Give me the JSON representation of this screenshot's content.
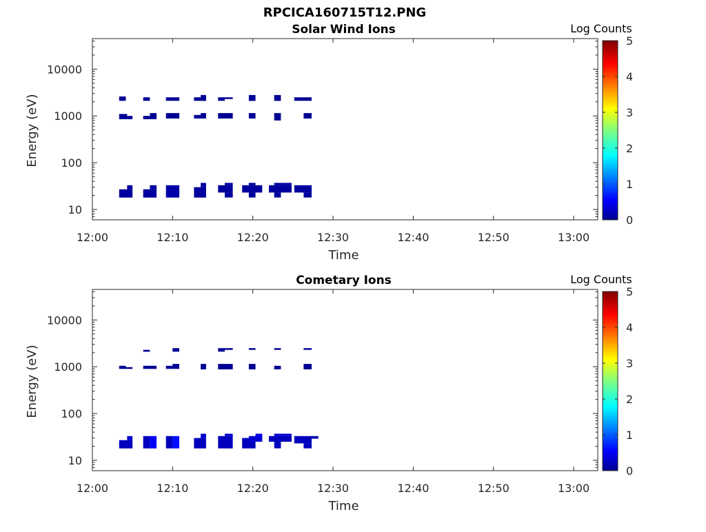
{
  "figure": {
    "title": "RPCICA160715T12.PNG"
  },
  "colorbar": {
    "label": "Log Counts",
    "min": 0,
    "max": 5,
    "ticks": [
      0,
      1,
      2,
      3,
      4,
      5
    ],
    "colormap": "jet"
  },
  "chart_data": [
    {
      "type": "heatmap",
      "title": "Solar Wind Ions",
      "xlabel": "Time",
      "ylabel": "Energy (eV)",
      "yscale": "log",
      "xlim": [
        "12:00",
        "13:03"
      ],
      "ylim": [
        6,
        45000
      ],
      "xticks": [
        "12:00",
        "12:10",
        "12:20",
        "12:30",
        "12:40",
        "12:50",
        "13:00"
      ],
      "yticks": [
        10,
        100,
        1000,
        10000
      ],
      "grid": false,
      "clim": [
        0,
        5
      ],
      "cells": [
        {
          "t0": "12:03:20",
          "t1": "12:04:10",
          "e0": 2100,
          "e1": 2600,
          "v": 0.1
        },
        {
          "t0": "12:03:20",
          "t1": "12:04:20",
          "e0": 850,
          "e1": 1100,
          "v": 0.1
        },
        {
          "t0": "12:04:20",
          "t1": "12:05:00",
          "e0": 850,
          "e1": 1000,
          "v": 0.1
        },
        {
          "t0": "12:03:20",
          "t1": "12:05:00",
          "e0": 18,
          "e1": 27,
          "v": 0.15
        },
        {
          "t0": "12:04:20",
          "t1": "12:05:00",
          "e0": 27,
          "e1": 33,
          "v": 0.15
        },
        {
          "t0": "12:06:20",
          "t1": "12:07:10",
          "e0": 2100,
          "e1": 2500,
          "v": 0.1
        },
        {
          "t0": "12:06:20",
          "t1": "12:07:10",
          "e0": 850,
          "e1": 1000,
          "v": 0.1
        },
        {
          "t0": "12:07:10",
          "t1": "12:08:00",
          "e0": 850,
          "e1": 1150,
          "v": 0.1
        },
        {
          "t0": "12:06:20",
          "t1": "12:08:00",
          "e0": 18,
          "e1": 27,
          "v": 0.15
        },
        {
          "t0": "12:07:10",
          "t1": "12:08:00",
          "e0": 27,
          "e1": 33,
          "v": 0.15
        },
        {
          "t0": "12:09:10",
          "t1": "12:10:50",
          "e0": 2100,
          "e1": 2500,
          "v": 0.1
        },
        {
          "t0": "12:09:10",
          "t1": "12:10:50",
          "e0": 880,
          "e1": 1150,
          "v": 0.1
        },
        {
          "t0": "12:09:10",
          "t1": "12:10:50",
          "e0": 18,
          "e1": 33,
          "v": 0.2
        },
        {
          "t0": "12:12:40",
          "t1": "12:13:30",
          "e0": 2100,
          "e1": 2500,
          "v": 0.1
        },
        {
          "t0": "12:13:30",
          "t1": "12:14:10",
          "e0": 2100,
          "e1": 2800,
          "v": 0.1
        },
        {
          "t0": "12:12:40",
          "t1": "12:13:30",
          "e0": 880,
          "e1": 1050,
          "v": 0.1
        },
        {
          "t0": "12:13:30",
          "t1": "12:14:10",
          "e0": 880,
          "e1": 1150,
          "v": 0.1
        },
        {
          "t0": "12:12:40",
          "t1": "12:14:10",
          "e0": 18,
          "e1": 30,
          "v": 0.15
        },
        {
          "t0": "12:13:30",
          "t1": "12:14:10",
          "e0": 30,
          "e1": 37,
          "v": 0.15
        },
        {
          "t0": "12:15:40",
          "t1": "12:16:30",
          "e0": 2100,
          "e1": 2500,
          "v": 0.1
        },
        {
          "t0": "12:16:30",
          "t1": "12:17:30",
          "e0": 2300,
          "e1": 2500,
          "v": 0.1
        },
        {
          "t0": "12:15:40",
          "t1": "12:17:30",
          "e0": 880,
          "e1": 1150,
          "v": 0.1
        },
        {
          "t0": "12:15:40",
          "t1": "12:17:30",
          "e0": 23,
          "e1": 33,
          "v": 0.15
        },
        {
          "t0": "12:16:30",
          "t1": "12:17:30",
          "e0": 18,
          "e1": 23,
          "v": 0.15
        },
        {
          "t0": "12:16:30",
          "t1": "12:17:30",
          "e0": 33,
          "e1": 37,
          "v": 0.15
        },
        {
          "t0": "12:19:30",
          "t1": "12:20:20",
          "e0": 2100,
          "e1": 2800,
          "v": 0.1
        },
        {
          "t0": "12:19:30",
          "t1": "12:20:20",
          "e0": 880,
          "e1": 1150,
          "v": 0.1
        },
        {
          "t0": "12:18:40",
          "t1": "12:21:10",
          "e0": 23,
          "e1": 33,
          "v": 0.15
        },
        {
          "t0": "12:19:30",
          "t1": "12:20:20",
          "e0": 18,
          "e1": 23,
          "v": 0.15
        },
        {
          "t0": "12:19:30",
          "t1": "12:20:20",
          "e0": 33,
          "e1": 37,
          "v": 0.15
        },
        {
          "t0": "12:22:40",
          "t1": "12:23:30",
          "e0": 2100,
          "e1": 2800,
          "v": 0.1
        },
        {
          "t0": "12:22:40",
          "t1": "12:23:30",
          "e0": 800,
          "e1": 1150,
          "v": 0.1
        },
        {
          "t0": "12:22:00",
          "t1": "12:24:50",
          "e0": 23,
          "e1": 33,
          "v": 0.15
        },
        {
          "t0": "12:22:40",
          "t1": "12:24:50",
          "e0": 33,
          "e1": 37,
          "v": 0.15
        },
        {
          "t0": "12:22:40",
          "t1": "12:23:30",
          "e0": 18,
          "e1": 23,
          "v": 0.15
        },
        {
          "t0": "12:25:10",
          "t1": "12:27:20",
          "e0": 2100,
          "e1": 2500,
          "v": 0.1
        },
        {
          "t0": "12:26:20",
          "t1": "12:27:20",
          "e0": 880,
          "e1": 1150,
          "v": 0.1
        },
        {
          "t0": "12:25:10",
          "t1": "12:27:20",
          "e0": 23,
          "e1": 33,
          "v": 0.15
        },
        {
          "t0": "12:26:20",
          "t1": "12:27:20",
          "e0": 18,
          "e1": 23,
          "v": 0.15
        }
      ]
    },
    {
      "type": "heatmap",
      "title": "Cometary Ions",
      "xlabel": "Time",
      "ylabel": "Energy (eV)",
      "yscale": "log",
      "xlim": [
        "12:00",
        "13:03"
      ],
      "ylim": [
        6,
        45000
      ],
      "xticks": [
        "12:00",
        "12:10",
        "12:20",
        "12:30",
        "12:40",
        "12:50",
        "13:00"
      ],
      "yticks": [
        10,
        100,
        1000,
        10000
      ],
      "grid": false,
      "clim": [
        0,
        5
      ],
      "cells": [
        {
          "t0": "12:03:20",
          "t1": "12:04:10",
          "e0": 900,
          "e1": 1050,
          "v": 0.1
        },
        {
          "t0": "12:04:10",
          "t1": "12:05:00",
          "e0": 900,
          "e1": 980,
          "v": 0.1
        },
        {
          "t0": "12:03:20",
          "t1": "12:05:00",
          "e0": 18,
          "e1": 27,
          "v": 0.3
        },
        {
          "t0": "12:04:20",
          "t1": "12:05:00",
          "e0": 27,
          "e1": 33,
          "v": 0.4
        },
        {
          "t0": "12:06:20",
          "t1": "12:07:10",
          "e0": 2100,
          "e1": 2300,
          "v": 0.1
        },
        {
          "t0": "12:06:20",
          "t1": "12:08:00",
          "e0": 900,
          "e1": 1050,
          "v": 0.1
        },
        {
          "t0": "12:06:20",
          "t1": "12:07:10",
          "e0": 18,
          "e1": 33,
          "v": 0.3
        },
        {
          "t0": "12:07:10",
          "t1": "12:08:00",
          "e0": 18,
          "e1": 33,
          "v": 0.6
        },
        {
          "t0": "12:10:00",
          "t1": "12:10:50",
          "e0": 2100,
          "e1": 2500,
          "v": 0.1
        },
        {
          "t0": "12:09:10",
          "t1": "12:10:00",
          "e0": 900,
          "e1": 1050,
          "v": 0.1
        },
        {
          "t0": "12:10:00",
          "t1": "12:10:50",
          "e0": 900,
          "e1": 1150,
          "v": 0.1
        },
        {
          "t0": "12:09:10",
          "t1": "12:10:00",
          "e0": 18,
          "e1": 33,
          "v": 0.3
        },
        {
          "t0": "12:10:00",
          "t1": "12:10:50",
          "e0": 18,
          "e1": 33,
          "v": 0.7
        },
        {
          "t0": "12:13:30",
          "t1": "12:14:10",
          "e0": 880,
          "e1": 1150,
          "v": 0.1
        },
        {
          "t0": "12:12:40",
          "t1": "12:14:10",
          "e0": 18,
          "e1": 30,
          "v": 0.3
        },
        {
          "t0": "12:13:30",
          "t1": "12:14:10",
          "e0": 30,
          "e1": 37,
          "v": 0.4
        },
        {
          "t0": "12:15:40",
          "t1": "12:16:30",
          "e0": 2100,
          "e1": 2500,
          "v": 0.1
        },
        {
          "t0": "12:16:30",
          "t1": "12:17:30",
          "e0": 2300,
          "e1": 2500,
          "v": 0.1
        },
        {
          "t0": "12:15:40",
          "t1": "12:17:30",
          "e0": 880,
          "e1": 1150,
          "v": 0.1
        },
        {
          "t0": "12:15:40",
          "t1": "12:17:30",
          "e0": 18,
          "e1": 33,
          "v": 0.3
        },
        {
          "t0": "12:16:30",
          "t1": "12:17:30",
          "e0": 33,
          "e1": 37,
          "v": 0.4
        },
        {
          "t0": "12:19:30",
          "t1": "12:20:20",
          "e0": 2300,
          "e1": 2500,
          "v": 0.1
        },
        {
          "t0": "12:19:30",
          "t1": "12:20:20",
          "e0": 880,
          "e1": 1150,
          "v": 0.1
        },
        {
          "t0": "12:18:40",
          "t1": "12:20:20",
          "e0": 18,
          "e1": 30,
          "v": 0.3
        },
        {
          "t0": "12:19:30",
          "t1": "12:21:10",
          "e0": 25,
          "e1": 33,
          "v": 0.4
        },
        {
          "t0": "12:20:20",
          "t1": "12:21:10",
          "e0": 30,
          "e1": 37,
          "v": 0.5
        },
        {
          "t0": "12:22:40",
          "t1": "12:23:30",
          "e0": 2300,
          "e1": 2500,
          "v": 0.1
        },
        {
          "t0": "12:22:40",
          "t1": "12:23:30",
          "e0": 880,
          "e1": 1050,
          "v": 0.1
        },
        {
          "t0": "12:22:00",
          "t1": "12:24:50",
          "e0": 25,
          "e1": 33,
          "v": 0.3
        },
        {
          "t0": "12:22:40",
          "t1": "12:24:50",
          "e0": 33,
          "e1": 37,
          "v": 0.4
        },
        {
          "t0": "12:22:40",
          "t1": "12:23:30",
          "e0": 18,
          "e1": 25,
          "v": 0.3
        },
        {
          "t0": "12:26:20",
          "t1": "12:27:20",
          "e0": 2300,
          "e1": 2500,
          "v": 0.1
        },
        {
          "t0": "12:26:20",
          "t1": "12:27:20",
          "e0": 880,
          "e1": 1150,
          "v": 0.1
        },
        {
          "t0": "12:25:10",
          "t1": "12:27:20",
          "e0": 23,
          "e1": 33,
          "v": 0.3
        },
        {
          "t0": "12:26:20",
          "t1": "12:27:20",
          "e0": 18,
          "e1": 23,
          "v": 0.3
        },
        {
          "t0": "12:27:20",
          "t1": "12:28:10",
          "e0": 29,
          "e1": 33,
          "v": 0.2
        }
      ]
    }
  ]
}
